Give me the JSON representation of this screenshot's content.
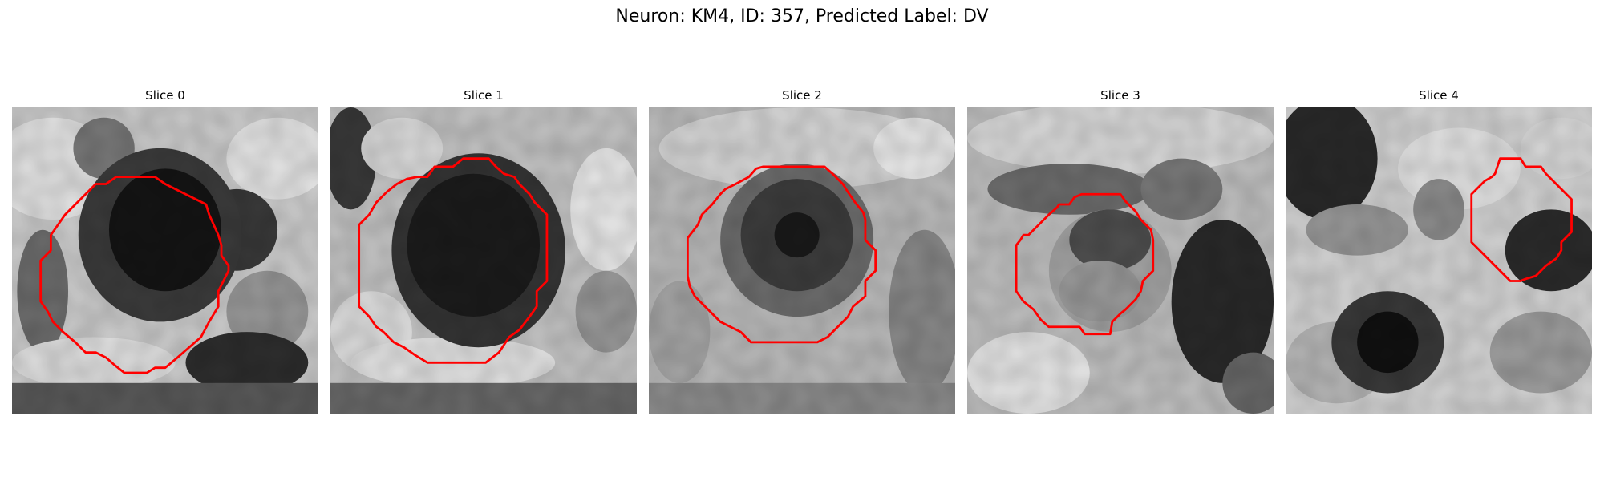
{
  "figure": {
    "title": "Neuron: KM4, ID: 357, Predicted Label: DV"
  },
  "contour_color": "#ff0000",
  "panels": [
    {
      "title": "Slice 0"
    },
    {
      "title": "Slice 1"
    },
    {
      "title": "Slice 2"
    },
    {
      "title": "Slice 3"
    },
    {
      "title": "Slice 4"
    }
  ]
}
